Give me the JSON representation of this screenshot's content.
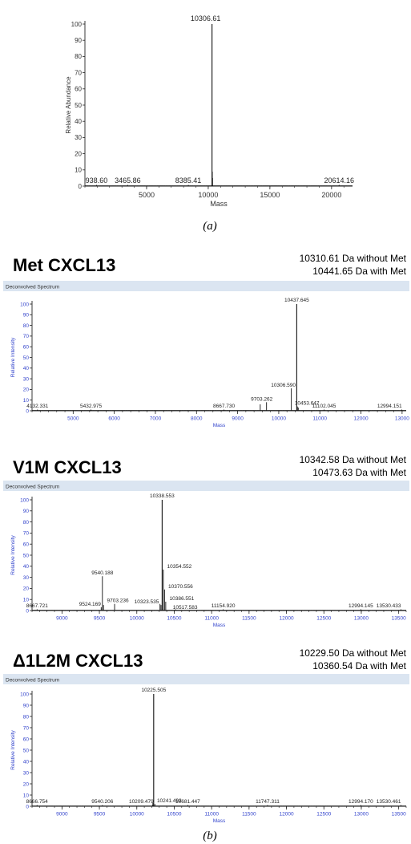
{
  "captions": {
    "a": "(a)",
    "b": "(b)"
  },
  "colors": {
    "panel_bar": "#dbe5f1",
    "axis_blue": "#3344cc",
    "axis_black": "#333333",
    "peak": "#111111"
  },
  "chart_data": [
    {
      "type": "line",
      "title": "",
      "xlabel": "Mass",
      "ylabel": "Relative Abundance",
      "xlim": [
        0,
        21700
      ],
      "ylim": [
        0,
        100
      ],
      "xticks": [
        5000,
        10000,
        15000,
        20000
      ],
      "yticks": [
        0,
        10,
        20,
        30,
        40,
        50,
        60,
        70,
        80,
        90,
        100
      ],
      "peaks": [
        {
          "x": 938.6,
          "y": 0,
          "label": "938.60"
        },
        {
          "x": 3465.86,
          "y": 0,
          "label": "3465.86"
        },
        {
          "x": 8385.41,
          "y": 0,
          "label": "8385.41"
        },
        {
          "x": 10306.61,
          "y": 100,
          "label": "10306.61"
        },
        {
          "x": 10330,
          "y": 9,
          "label": ""
        },
        {
          "x": 10350,
          "y": 5,
          "label": ""
        },
        {
          "x": 20614.16,
          "y": 0,
          "label": "20614.16"
        }
      ]
    },
    {
      "type": "line",
      "title": "Met CXCL13",
      "note1": "10310.61 Da without Met",
      "note2": "10441.65 Da with Met",
      "panel_label": "Deconvolved Spectrum",
      "xlabel": "Mass",
      "ylabel": "Relative Intensity",
      "xlim": [
        4000,
        13100
      ],
      "ylim": [
        0,
        100
      ],
      "xticks": [
        5000,
        6000,
        7000,
        8000,
        9000,
        10000,
        11000,
        12000,
        13000
      ],
      "yticks": [
        0,
        10,
        20,
        30,
        40,
        50,
        60,
        70,
        80,
        90,
        100
      ],
      "peaks": [
        {
          "x": 4132.331,
          "y": 0,
          "label": "4132.331"
        },
        {
          "x": 5432.975,
          "y": 0,
          "label": "5432.975"
        },
        {
          "x": 8667.73,
          "y": 0,
          "label": "8667.730"
        },
        {
          "x": 9550,
          "y": 6,
          "label": ""
        },
        {
          "x": 9703.262,
          "y": 8,
          "label": "9703.262"
        },
        {
          "x": 10306.59,
          "y": 21,
          "label": "10306.590"
        },
        {
          "x": 10437.645,
          "y": 100,
          "label": "10437.645"
        },
        {
          "x": 10453.647,
          "y": 4,
          "label": "10453.647"
        },
        {
          "x": 10475,
          "y": 3,
          "label": ""
        },
        {
          "x": 11102.045,
          "y": 0,
          "label": "11102.045"
        },
        {
          "x": 12994.151,
          "y": 0,
          "label": "12994.151"
        }
      ]
    },
    {
      "type": "line",
      "title": "V1M CXCL13",
      "note1": "10342.58 Da without Met",
      "note2": "10473.63 Da with Met",
      "panel_label": "Deconvolved Spectrum",
      "xlabel": "Mass",
      "ylabel": "Relative Intensity",
      "xlim": [
        8600,
        13600
      ],
      "ylim": [
        0,
        100
      ],
      "xticks": [
        9000,
        9500,
        10000,
        10500,
        11000,
        11500,
        12000,
        12500,
        13000,
        13500
      ],
      "yticks": [
        0,
        10,
        20,
        30,
        40,
        50,
        60,
        70,
        80,
        90,
        100
      ],
      "peaks": [
        {
          "x": 8667.721,
          "y": 0,
          "label": "8667.721"
        },
        {
          "x": 9524.169,
          "y": 3,
          "label": "9524.169"
        },
        {
          "x": 9540.188,
          "y": 31,
          "label": "9540.188"
        },
        {
          "x": 9555,
          "y": 5,
          "label": ""
        },
        {
          "x": 9703.236,
          "y": 6,
          "label": "9703.236"
        },
        {
          "x": 10310,
          "y": 6,
          "label": ""
        },
        {
          "x": 10323.535,
          "y": 5,
          "label": "10323.535"
        },
        {
          "x": 10338.553,
          "y": 100,
          "label": "10338.553"
        },
        {
          "x": 10354.552,
          "y": 37,
          "label": "10354.552"
        },
        {
          "x": 10370.556,
          "y": 19,
          "label": "10370.556"
        },
        {
          "x": 10386.551,
          "y": 8,
          "label": "10386.551"
        },
        {
          "x": 10517.583,
          "y": 0,
          "label": "10517.583"
        },
        {
          "x": 11154.92,
          "y": 0,
          "label": "11154.920"
        },
        {
          "x": 12994.145,
          "y": 0,
          "label": "12994.145"
        },
        {
          "x": 13530.433,
          "y": 0,
          "label": "13530.433"
        }
      ]
    },
    {
      "type": "line",
      "title": "Δ1L2M CXCL13",
      "note1": "10229.50 Da without Met",
      "note2": "10360.54 Da with Met",
      "panel_label": "Deconvolved Spectrum",
      "xlabel": "Mass",
      "ylabel": "Relative Intensity",
      "xlim": [
        8600,
        13600
      ],
      "ylim": [
        0,
        100
      ],
      "xticks": [
        9000,
        9500,
        10000,
        10500,
        11000,
        11500,
        12000,
        12500,
        13000,
        13500
      ],
      "yticks": [
        0,
        10,
        20,
        30,
        40,
        50,
        60,
        70,
        80,
        90,
        100
      ],
      "peaks": [
        {
          "x": 8666.754,
          "y": 0,
          "label": "8666.754"
        },
        {
          "x": 9540.206,
          "y": 0,
          "label": "9540.206"
        },
        {
          "x": 10209.479,
          "y": 0,
          "label": "10209.479"
        },
        {
          "x": 10215,
          "y": 3,
          "label": ""
        },
        {
          "x": 10225.505,
          "y": 100,
          "label": "10225.505"
        },
        {
          "x": 10241.492,
          "y": 2,
          "label": "10241.492"
        },
        {
          "x": 10681.447,
          "y": 0,
          "label": "10681.447"
        },
        {
          "x": 11747.311,
          "y": 0,
          "label": "11747.311"
        },
        {
          "x": 12994.17,
          "y": 0,
          "label": "12994.170"
        },
        {
          "x": 13530.461,
          "y": 0,
          "label": "13530.461"
        }
      ]
    }
  ]
}
